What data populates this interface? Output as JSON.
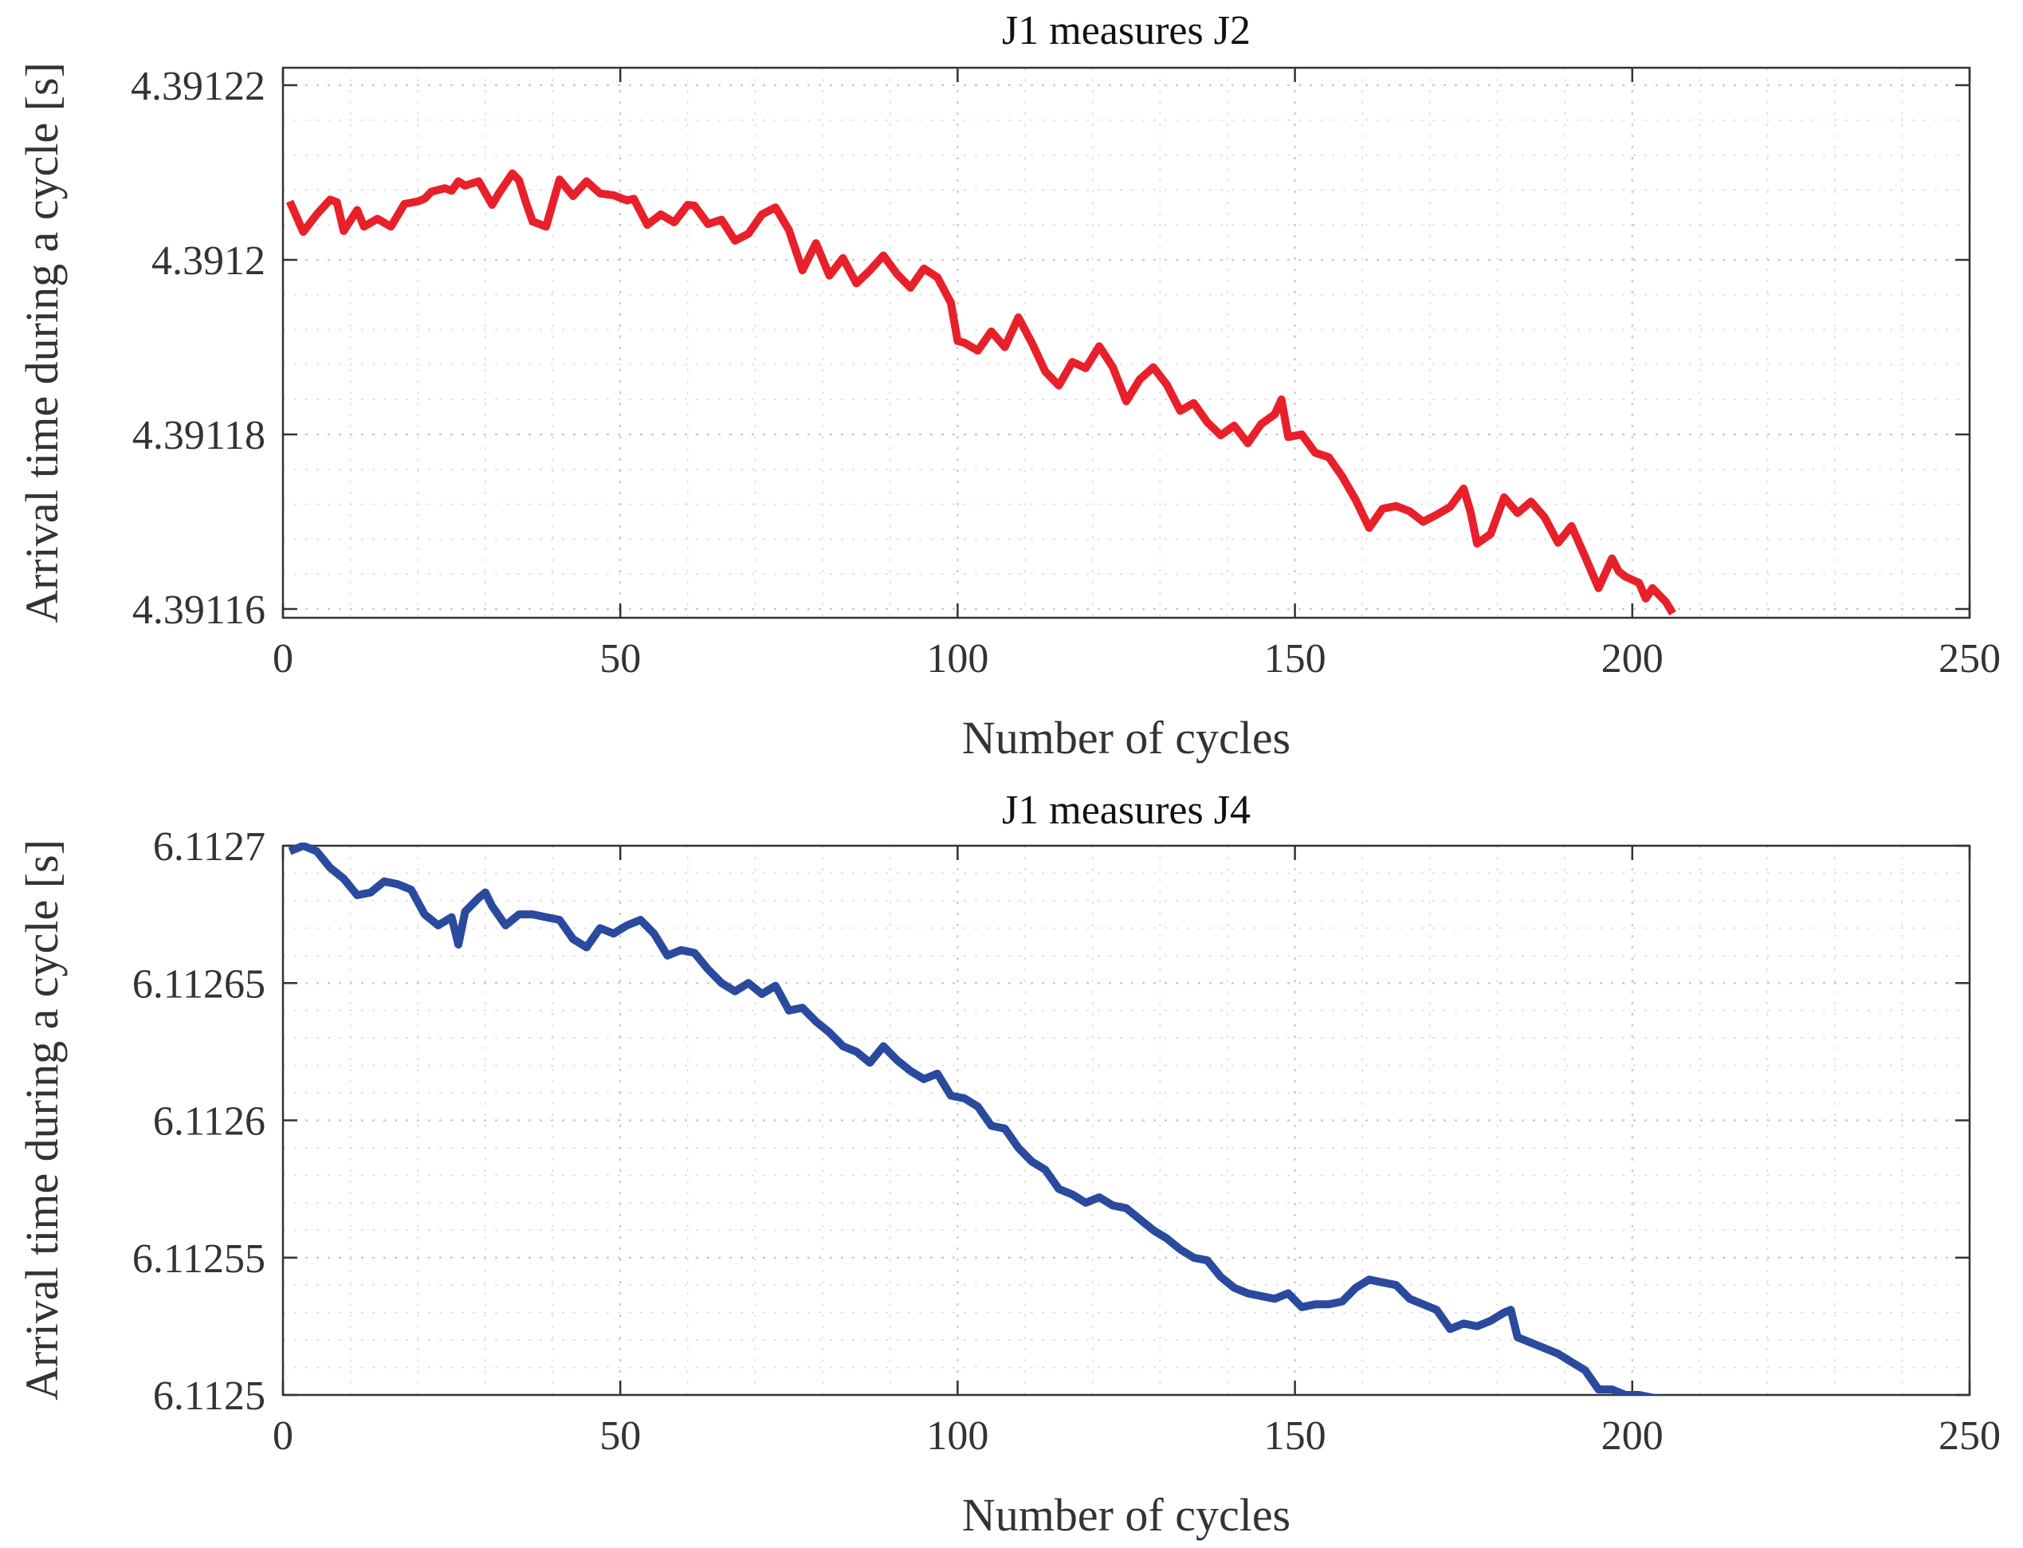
{
  "chart_data": [
    {
      "type": "line",
      "title": "J1 measures J2",
      "xlabel": "Number of cycles",
      "ylabel": "Arrival time during a cycle [s]",
      "xlim": [
        0,
        250
      ],
      "ylim": [
        4.391159,
        4.391222
      ],
      "xticks": [
        0,
        50,
        100,
        150,
        200,
        250
      ],
      "xtick_labels": [
        "0",
        "50",
        "100",
        "150",
        "200",
        "250"
      ],
      "yticks": [
        4.39116,
        4.39118,
        4.3912,
        4.39122
      ],
      "ytick_labels": [
        "4.39116",
        "4.39118",
        "4.3912",
        "4.39122"
      ],
      "grid": true,
      "series": [
        {
          "name": "J2",
          "color": "#e8202a",
          "x": [
            1,
            3,
            5,
            7,
            8,
            9,
            11,
            12,
            14,
            16,
            18,
            20,
            21,
            22,
            24,
            25,
            26,
            27,
            29,
            31,
            32,
            34,
            35,
            36,
            37,
            39,
            41,
            43,
            45,
            47,
            49,
            51,
            52,
            54,
            56,
            58,
            60,
            61,
            63,
            65,
            67,
            69,
            71,
            73,
            75,
            77,
            79,
            81,
            83,
            85,
            87,
            89,
            91,
            93,
            95,
            97,
            99,
            100,
            101,
            103,
            105,
            107,
            109,
            111,
            113,
            115,
            117,
            119,
            121,
            123,
            125,
            127,
            129,
            131,
            133,
            135,
            137,
            139,
            141,
            143,
            145,
            147,
            148,
            149,
            151,
            153,
            155,
            157,
            159,
            161,
            163,
            165,
            167,
            169,
            171,
            173,
            175,
            176,
            177,
            179,
            181,
            183,
            185,
            187,
            189,
            191,
            193,
            195,
            197,
            198,
            199,
            201,
            202,
            203,
            205,
            206
          ],
          "y": [
            4.3912067,
            4.3912032,
            4.3912052,
            4.3912069,
            4.3912066,
            4.3912033,
            4.3912057,
            4.3912038,
            4.3912047,
            4.3912038,
            4.3912064,
            4.3912067,
            4.391207,
            4.3912078,
            4.3912082,
            4.3912079,
            4.391209,
            4.3912085,
            4.391209,
            4.3912063,
            4.3912076,
            4.3912099,
            4.3912091,
            4.3912066,
            4.3912044,
            4.3912038,
            4.3912092,
            4.3912073,
            4.391209,
            4.3912076,
            4.3912074,
            4.3912068,
            4.391207,
            4.391204,
            4.3912052,
            4.3912043,
            4.3912063,
            4.3912062,
            4.3912041,
            4.3912046,
            4.3912022,
            4.391203,
            4.3912052,
            4.391206,
            4.3912034,
            4.3911988,
            4.3912019,
            4.3911982,
            4.3912002,
            4.3911973,
            4.3911988,
            4.3912005,
            4.3911984,
            4.3911968,
            4.391199,
            4.391198,
            4.3911951,
            4.3911907,
            4.3911905,
            4.3911896,
            4.3911918,
            4.39119,
            4.3911934,
            4.3911905,
            4.3911872,
            4.3911856,
            4.3911883,
            4.3911876,
            4.3911901,
            4.3911877,
            4.3911838,
            4.3911863,
            4.3911877,
            4.3911857,
            4.3911827,
            4.3911836,
            4.3911814,
            4.3911799,
            4.391181,
            4.391179,
            4.3911812,
            4.3911823,
            4.391184,
            4.3911797,
            4.39118,
            4.3911779,
            4.3911774,
            4.3911752,
            4.3911725,
            4.3911693,
            4.3911715,
            4.3911718,
            4.3911712,
            4.39117,
            4.3911708,
            4.3911717,
            4.3911738,
            4.3911712,
            4.3911675,
            4.3911686,
            4.3911728,
            4.391171,
            4.3911723,
            4.3911705,
            4.3911676,
            4.3911695,
            4.391166,
            4.3911624,
            4.3911658,
            4.3911643,
            4.3911637,
            4.391163,
            4.3911612,
            4.3911624,
            4.3911608,
            4.3911595
          ]
        }
      ]
    },
    {
      "type": "line",
      "title": "J1 measures J4",
      "xlabel": "Number of cycles",
      "ylabel": "Arrival time during a cycle [s]",
      "xlim": [
        0,
        250
      ],
      "ylim": [
        6.1125,
        6.1127
      ],
      "xticks": [
        0,
        50,
        100,
        150,
        200,
        250
      ],
      "xtick_labels": [
        "0",
        "50",
        "100",
        "150",
        "200",
        "250"
      ],
      "yticks": [
        6.1125,
        6.11255,
        6.1126,
        6.11265,
        6.1127
      ],
      "ytick_labels": [
        "6.1125",
        "6.11255",
        "6.1126",
        "6.11265",
        "6.1127"
      ],
      "grid": true,
      "series": [
        {
          "name": "J4",
          "color": "#2a4a9e",
          "x": [
            1,
            3,
            5,
            7,
            9,
            11,
            13,
            15,
            17,
            19,
            21,
            23,
            25,
            26,
            27,
            29,
            30,
            31,
            33,
            35,
            37,
            39,
            41,
            43,
            45,
            47,
            49,
            51,
            53,
            55,
            57,
            59,
            61,
            63,
            65,
            67,
            69,
            71,
            73,
            75,
            77,
            79,
            81,
            83,
            85,
            87,
            89,
            91,
            93,
            95,
            97,
            99,
            101,
            103,
            105,
            107,
            109,
            111,
            113,
            115,
            117,
            119,
            121,
            123,
            125,
            127,
            129,
            131,
            133,
            135,
            137,
            139,
            141,
            143,
            145,
            147,
            149,
            151,
            153,
            155,
            157,
            159,
            161,
            163,
            165,
            167,
            169,
            171,
            173,
            175,
            177,
            179,
            181,
            182,
            183,
            185,
            187,
            189,
            191,
            193,
            195,
            197,
            199,
            201,
            203,
            205,
            206
          ],
          "y": [
            6.112698,
            6.1127,
            6.112698,
            6.112692,
            6.112688,
            6.112682,
            6.112683,
            6.112687,
            6.112686,
            6.112684,
            6.112675,
            6.112671,
            6.112674,
            6.112664,
            6.112676,
            6.112681,
            6.112683,
            6.112678,
            6.112671,
            6.112675,
            6.112675,
            6.112674,
            6.112673,
            6.112666,
            6.112663,
            6.11267,
            6.112668,
            6.112671,
            6.112673,
            6.112668,
            6.11266,
            6.112662,
            6.112661,
            6.112655,
            6.11265,
            6.112647,
            6.11265,
            6.112646,
            6.112649,
            6.11264,
            6.112641,
            6.112636,
            6.112632,
            6.112627,
            6.112625,
            6.112621,
            6.112627,
            6.112622,
            6.112618,
            6.112615,
            6.112617,
            6.112609,
            6.112608,
            6.112605,
            6.112598,
            6.112597,
            6.11259,
            6.112585,
            6.112582,
            6.112575,
            6.112573,
            6.11257,
            6.112572,
            6.112569,
            6.112568,
            6.112564,
            6.11256,
            6.112557,
            6.112553,
            6.11255,
            6.112549,
            6.112543,
            6.112539,
            6.112537,
            6.112536,
            6.112535,
            6.112537,
            6.112532,
            6.112533,
            6.112533,
            6.112534,
            6.112539,
            6.112542,
            6.112541,
            6.11254,
            6.112535,
            6.112533,
            6.112531,
            6.112524,
            6.112526,
            6.112525,
            6.112527,
            6.11253,
            6.112531,
            6.112521,
            6.112519,
            6.112517,
            6.112515,
            6.112512,
            6.112509,
            6.112502,
            6.112502,
            6.1125,
            6.1125,
            6.112499,
            6.112498,
            6.112498
          ]
        }
      ]
    }
  ]
}
